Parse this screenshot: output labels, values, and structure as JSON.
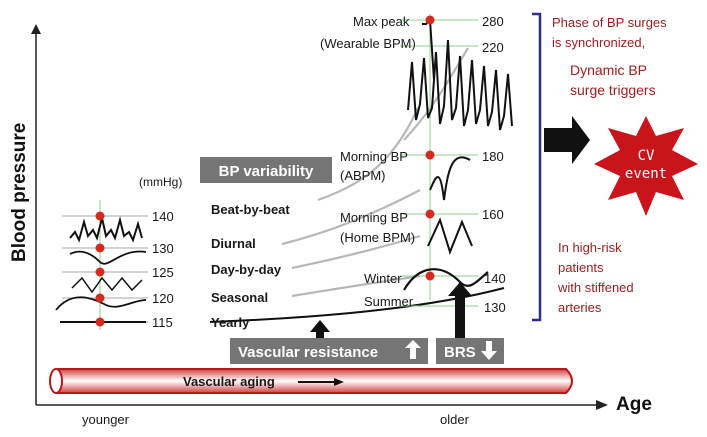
{
  "axes": {
    "y_label": "Blood pressure",
    "x_label": "Age",
    "x_left": "younger",
    "x_right": "older"
  },
  "unit": "(mmHg)",
  "bp_variability_label": "BP variability",
  "left_levels": [
    {
      "value": "140",
      "label": "Beat-by-beat"
    },
    {
      "value": "130",
      "label": "Diurnal"
    },
    {
      "value": "125",
      "label": "Day-by-day"
    },
    {
      "value": "120",
      "label": "Seasonal"
    },
    {
      "value": "115",
      "label": "Yearly"
    }
  ],
  "right_levels": {
    "max_peak": "Max peak",
    "wearable": "(Wearable BPM)",
    "v280": "280",
    "v220": "220",
    "morning_abpm_1": "Morning BP",
    "morning_abpm_2": "(ABPM)",
    "v180": "180",
    "morning_home_1": "Morning BP",
    "morning_home_2": "(Home BPM)",
    "v160": "160",
    "winter": "Winter",
    "v140": "140",
    "summer": "Summer",
    "v130": "130"
  },
  "vascular_resistance": "Vascular resistance",
  "brs": "BRS",
  "vascular_aging": "Vascular aging",
  "notes": {
    "phase_1": "Phase of BP surges",
    "phase_2": "is synchronized,",
    "dynamic_1": "Dynamic BP",
    "dynamic_2": "surge triggers",
    "cv_1": "CV",
    "cv_2": "event",
    "risk_1": "In high-risk",
    "risk_2": "patients",
    "risk_3": "with stiffened",
    "risk_4": "arteries"
  },
  "colors": {
    "dot": "#d42a1f",
    "label_box": "#757575",
    "accent_red": "#a01e1e",
    "cv_star": "#c8141a",
    "bracket": "#2e2e8c",
    "guide": "#8fd08f",
    "vessel": "#b81a1a"
  }
}
